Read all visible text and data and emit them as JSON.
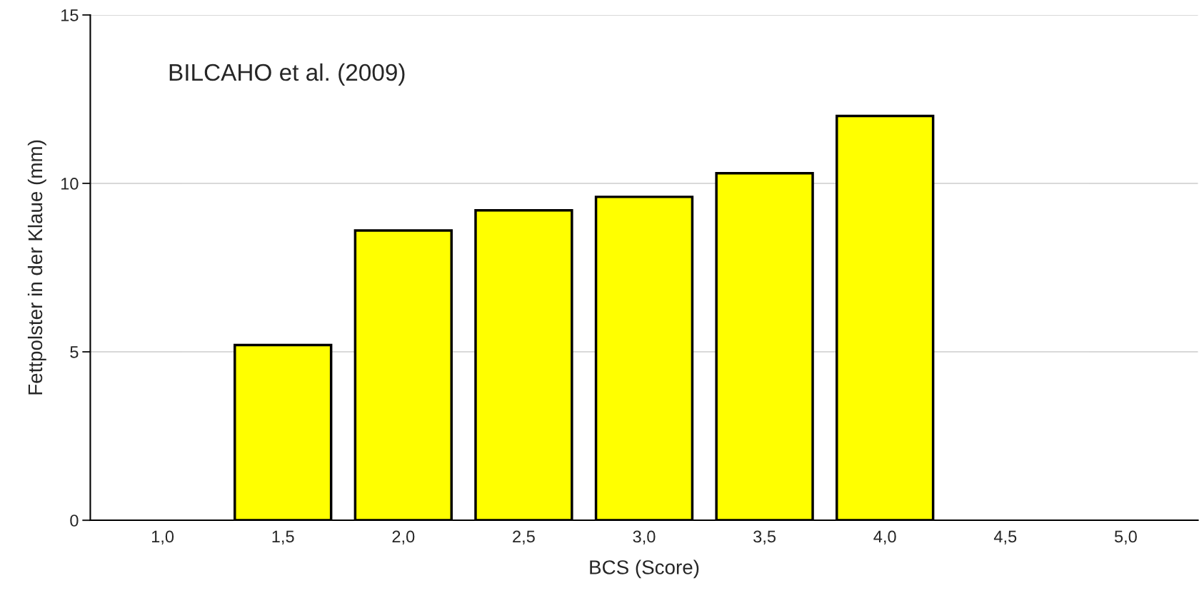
{
  "chart_data": {
    "type": "bar",
    "xlabel": "BCS (Score)",
    "ylabel": "Fettpolster in der Klaue (mm)",
    "categories": [
      "1,0",
      "1,5",
      "2,0",
      "2,5",
      "3,0",
      "3,5",
      "4,0",
      "4,5",
      "5,0"
    ],
    "values": [
      null,
      5.2,
      8.6,
      9.2,
      9.6,
      10.3,
      12.0,
      null,
      null
    ],
    "color": "#ffff00",
    "ylim": [
      0,
      15
    ],
    "yticks": [
      0,
      5,
      10,
      15
    ],
    "grid": "y",
    "legend": false,
    "annotations": [
      "BILCAHO et al. (2009)"
    ]
  }
}
